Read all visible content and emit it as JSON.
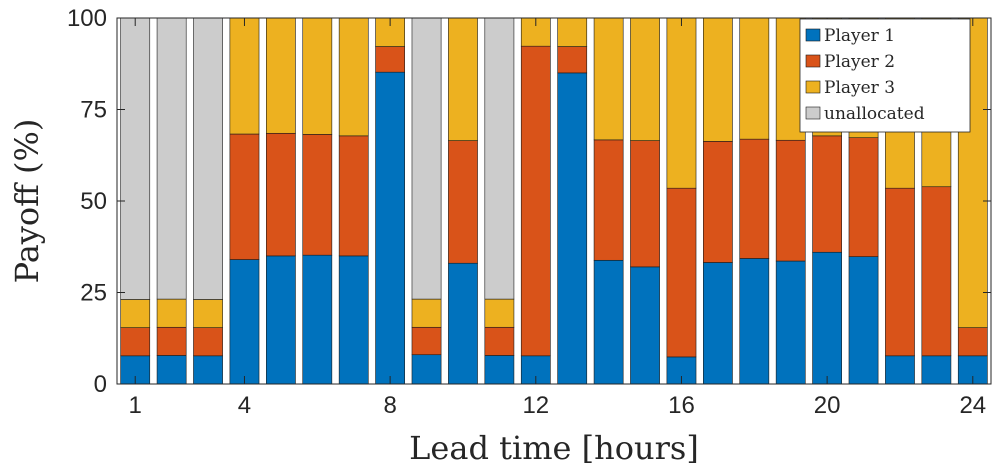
{
  "chart_data": {
    "type": "bar",
    "stacked": true,
    "xlabel": "Lead time [hours]",
    "ylabel": "Payoff (%)",
    "xlim": [
      0.5,
      24.5
    ],
    "ylim": [
      0,
      100
    ],
    "xticks": [
      1,
      4,
      8,
      12,
      16,
      20,
      24
    ],
    "yticks": [
      0,
      25,
      50,
      75,
      100
    ],
    "grid": false,
    "legend_position": "top-right",
    "categories": [
      1,
      2,
      3,
      4,
      5,
      6,
      7,
      8,
      9,
      10,
      11,
      12,
      13,
      14,
      15,
      16,
      17,
      18,
      19,
      20,
      21,
      22,
      23,
      24
    ],
    "series": [
      {
        "name": "Player 1",
        "color": "#0072BD",
        "values": [
          7.7,
          7.8,
          7.7,
          34,
          35,
          35.2,
          35,
          85.2,
          8,
          33,
          7.8,
          7.7,
          85,
          33.8,
          32,
          7.4,
          33.2,
          34.3,
          33.6,
          36,
          34.8,
          7.7,
          7.7,
          7.7
        ]
      },
      {
        "name": "Player 2",
        "color": "#D95319",
        "values": [
          7.7,
          7.7,
          7.7,
          34.3,
          33.5,
          33,
          32.8,
          7,
          7.5,
          33.5,
          7.7,
          84.6,
          7.2,
          32.9,
          34.5,
          46.1,
          33.1,
          32.6,
          33,
          31.8,
          32.5,
          45.8,
          46.2,
          7.7
        ]
      },
      {
        "name": "Player 3",
        "color": "#EDB120",
        "values": [
          7.7,
          7.7,
          7.7,
          31.7,
          31.5,
          31.8,
          32.2,
          7.8,
          7.7,
          33.5,
          7.7,
          7.7,
          7.8,
          33.3,
          33.5,
          46.5,
          33.7,
          33.1,
          33.4,
          32.2,
          32.7,
          46.5,
          46.1,
          84.6
        ]
      },
      {
        "name": "unallocated",
        "color": "#CCCCCC",
        "values": [
          76.9,
          76.8,
          76.9,
          0,
          0,
          0,
          0,
          0,
          76.8,
          0,
          76.8,
          0,
          0,
          0,
          0,
          0,
          0,
          0,
          0,
          0,
          0,
          0,
          0,
          0
        ]
      }
    ]
  }
}
